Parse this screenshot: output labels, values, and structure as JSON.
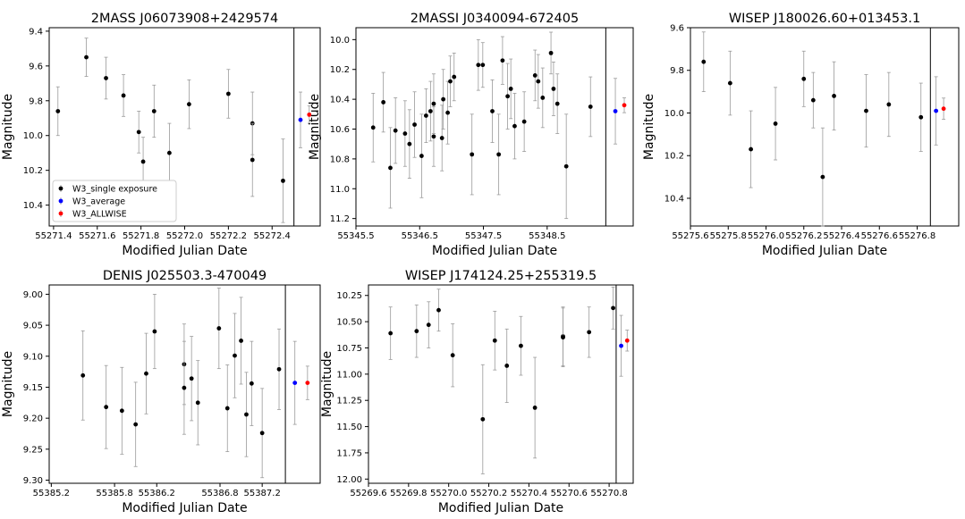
{
  "chart_data": [
    {
      "type": "scatter",
      "title": "2MASS J06073908+2429574",
      "xlabel": "Modified Julian Date",
      "ylabel": "Magnitude",
      "xlim": [
        55271.38,
        55272.62
      ],
      "ylim": [
        10.52,
        9.38
      ],
      "y_inverted": true,
      "xticks": [
        "55271.4",
        "55271.6",
        "55271.8",
        "55272.0",
        "55272.2",
        "55272.4"
      ],
      "yticks": [
        "9.4",
        "9.6",
        "9.8",
        "10.0",
        "10.2",
        "10.4"
      ],
      "separator_x": 55272.5,
      "legend": {
        "placement": "lower-left",
        "entries": [
          "W3_single exposure",
          "W3_average",
          "W3_ALLWISE"
        ]
      },
      "series": [
        {
          "name": "W3_single exposure",
          "color": "#000000",
          "points": [
            [
              55271.42,
              9.86,
              0.14
            ],
            [
              55271.55,
              9.55,
              0.11
            ],
            [
              55271.64,
              9.67,
              0.12
            ],
            [
              55271.72,
              9.77,
              0.12
            ],
            [
              55271.79,
              9.98,
              0.12
            ],
            [
              55271.81,
              10.15,
              0.14
            ],
            [
              55271.86,
              9.86,
              0.15
            ],
            [
              55271.93,
              10.1,
              0.17
            ],
            [
              55272.02,
              9.82,
              0.14
            ],
            [
              55272.2,
              9.76,
              0.14
            ],
            [
              55272.31,
              9.93,
              0.18
            ],
            [
              55272.31,
              10.14,
              0.21
            ],
            [
              55272.45,
              10.26,
              0.24
            ]
          ]
        },
        {
          "name": "W3_average",
          "color": "#0000ff",
          "points": [
            [
              55272.53,
              9.91,
              0.16
            ]
          ]
        },
        {
          "name": "W3_ALLWISE",
          "color": "#ff0000",
          "points": [
            [
              55272.57,
              9.88,
              0.05
            ]
          ]
        }
      ]
    },
    {
      "type": "scatter",
      "title": "2MASSI J0340094-672405",
      "xlabel": "Modified Julian Date",
      "ylabel": "Magnitude",
      "xlim": [
        55345.5,
        55349.85
      ],
      "ylim": [
        11.25,
        9.92
      ],
      "y_inverted": true,
      "xticks": [
        "55345.5",
        "55346.5",
        "55347.5",
        "55348.5"
      ],
      "yticks": [
        "10.0",
        "10.2",
        "10.4",
        "10.6",
        "10.8",
        "11.0",
        "11.2"
      ],
      "separator_x": 55349.42,
      "series": [
        {
          "name": "W3_single exposure",
          "color": "#000000",
          "points": [
            [
              55345.77,
              10.59,
              0.23
            ],
            [
              55345.93,
              10.42,
              0.2
            ],
            [
              55346.04,
              10.86,
              0.27
            ],
            [
              55346.12,
              10.61,
              0.22
            ],
            [
              55346.27,
              10.63,
              0.22
            ],
            [
              55346.34,
              10.7,
              0.23
            ],
            [
              55346.42,
              10.57,
              0.22
            ],
            [
              55346.53,
              10.78,
              0.28
            ],
            [
              55346.6,
              10.51,
              0.18
            ],
            [
              55346.67,
              10.48,
              0.2
            ],
            [
              55346.72,
              10.43,
              0.2
            ],
            [
              55346.72,
              10.65,
              0.2
            ],
            [
              55346.85,
              10.66,
              0.22
            ],
            [
              55346.87,
              10.4,
              0.2
            ],
            [
              55346.94,
              10.49,
              0.21
            ],
            [
              55346.98,
              10.28,
              0.17
            ],
            [
              55347.04,
              10.25,
              0.16
            ],
            [
              55347.32,
              10.77,
              0.27
            ],
            [
              55347.42,
              10.17,
              0.17
            ],
            [
              55347.49,
              10.17,
              0.15
            ],
            [
              55347.64,
              10.48,
              0.21
            ],
            [
              55347.74,
              10.77,
              0.27
            ],
            [
              55347.8,
              10.14,
              0.16
            ],
            [
              55347.88,
              10.38,
              0.22
            ],
            [
              55347.93,
              10.33,
              0.2
            ],
            [
              55347.99,
              10.58,
              0.22
            ],
            [
              55348.14,
              10.55,
              0.2
            ],
            [
              55348.31,
              10.24,
              0.17
            ],
            [
              55348.36,
              10.28,
              0.18
            ],
            [
              55348.43,
              10.39,
              0.2
            ],
            [
              55348.56,
              10.09,
              0.14
            ],
            [
              55348.6,
              10.33,
              0.18
            ],
            [
              55348.66,
              10.43,
              0.2
            ],
            [
              55348.8,
              10.85,
              0.35
            ],
            [
              55349.18,
              10.45,
              0.2
            ]
          ]
        },
        {
          "name": "W3_average",
          "color": "#0000ff",
          "points": [
            [
              55349.57,
              10.48,
              0.22
            ]
          ]
        },
        {
          "name": "W3_ALLWISE",
          "color": "#ff0000",
          "points": [
            [
              55349.71,
              10.44,
              0.05
            ]
          ]
        }
      ]
    },
    {
      "type": "scatter",
      "title": "WISEP J180026.60+013453.1",
      "xlabel": "Modified Julian Date",
      "ylabel": "Magnitude",
      "xlim": [
        55275.6,
        55277.02
      ],
      "ylim": [
        10.53,
        9.6
      ],
      "y_inverted": true,
      "xticks": [
        "55275.6",
        "55275.8",
        "55276.0",
        "55276.2",
        "55276.4",
        "55276.6",
        "55276.8"
      ],
      "yticks": [
        "9.6",
        "9.8",
        "10.0",
        "10.2",
        "10.4"
      ],
      "separator_x": 55276.87,
      "series": [
        {
          "name": "W3_single exposure",
          "color": "#000000",
          "points": [
            [
              55275.67,
              9.76,
              0.14
            ],
            [
              55275.81,
              9.86,
              0.15
            ],
            [
              55275.92,
              10.17,
              0.18
            ],
            [
              55276.05,
              10.05,
              0.17
            ],
            [
              55276.2,
              9.84,
              0.13
            ],
            [
              55276.25,
              9.94,
              0.13
            ],
            [
              55276.3,
              10.3,
              0.23
            ],
            [
              55276.36,
              9.92,
              0.16
            ],
            [
              55276.53,
              9.99,
              0.17
            ],
            [
              55276.65,
              9.96,
              0.15
            ],
            [
              55276.82,
              10.02,
              0.16
            ]
          ]
        },
        {
          "name": "W3_average",
          "color": "#0000ff",
          "points": [
            [
              55276.9,
              9.99,
              0.16
            ]
          ]
        },
        {
          "name": "W3_ALLWISE",
          "color": "#ff0000",
          "points": [
            [
              55276.94,
              9.98,
              0.05
            ]
          ]
        }
      ]
    },
    {
      "type": "scatter",
      "title": "DENIS J025503.3-470049",
      "xlabel": "Modified Julian Date",
      "ylabel": "Magnitude",
      "xlim": [
        55385.18,
        55387.75
      ],
      "ylim": [
        9.305,
        8.985
      ],
      "y_inverted": true,
      "xticks": [
        "55385.2",
        "55385.8",
        "55386.2",
        "55386.8",
        "55387.2"
      ],
      "yticks": [
        "9.00",
        "9.05",
        "9.10",
        "9.15",
        "9.20",
        "9.25",
        "9.30"
      ],
      "separator_x": 55387.42,
      "series": [
        {
          "name": "W3_single exposure",
          "color": "#000000",
          "points": [
            [
              55385.5,
              9.131,
              0.072
            ],
            [
              55385.72,
              9.182,
              0.067
            ],
            [
              55385.87,
              9.188,
              0.07
            ],
            [
              55386.0,
              9.21,
              0.068
            ],
            [
              55386.1,
              9.128,
              0.065
            ],
            [
              55386.18,
              9.06,
              0.06
            ],
            [
              55386.46,
              9.113,
              0.065
            ],
            [
              55386.46,
              9.151,
              0.075
            ],
            [
              55386.53,
              9.136,
              0.068
            ],
            [
              55386.59,
              9.175,
              0.068
            ],
            [
              55386.79,
              9.055,
              0.065
            ],
            [
              55386.87,
              9.184,
              0.07
            ],
            [
              55386.94,
              9.099,
              0.068
            ],
            [
              55387.0,
              9.075,
              0.07
            ],
            [
              55387.05,
              9.194,
              0.068
            ],
            [
              55387.1,
              9.144,
              0.068
            ],
            [
              55387.2,
              9.224,
              0.072
            ],
            [
              55387.36,
              9.121,
              0.065
            ]
          ]
        },
        {
          "name": "W3_average",
          "color": "#0000ff",
          "points": [
            [
              55387.51,
              9.143,
              0.067
            ]
          ]
        },
        {
          "name": "W3_ALLWISE",
          "color": "#ff0000",
          "points": [
            [
              55387.63,
              9.143,
              0.027
            ]
          ]
        }
      ]
    },
    {
      "type": "scatter",
      "title": "WISEP J174124.25+255319.5",
      "xlabel": "Modified Julian Date",
      "ylabel": "Magnitude",
      "xlim": [
        55269.6,
        55270.92
      ],
      "ylim": [
        12.04,
        10.15
      ],
      "y_inverted": true,
      "xticks": [
        "55269.6",
        "55269.8",
        "55270.0",
        "55270.2",
        "55270.4",
        "55270.6",
        "55270.8"
      ],
      "yticks": [
        "10.25",
        "10.50",
        "10.75",
        "11.00",
        "11.25",
        "11.50",
        "11.75",
        "12.00"
      ],
      "separator_x": 55270.835,
      "series": [
        {
          "name": "W3_single exposure",
          "color": "#000000",
          "points": [
            [
              55269.71,
              10.61,
              0.25
            ],
            [
              55269.84,
              10.59,
              0.25
            ],
            [
              55269.9,
              10.53,
              0.22
            ],
            [
              55269.95,
              10.39,
              0.2
            ],
            [
              55270.02,
              10.82,
              0.3
            ],
            [
              55270.17,
              11.43,
              0.52
            ],
            [
              55270.23,
              10.68,
              0.28
            ],
            [
              55270.29,
              10.92,
              0.35
            ],
            [
              55270.36,
              10.73,
              0.28
            ],
            [
              55270.43,
              11.32,
              0.48
            ],
            [
              55270.57,
              10.64,
              0.28
            ],
            [
              55270.57,
              10.65,
              0.28
            ],
            [
              55270.7,
              10.6,
              0.24
            ],
            [
              55270.82,
              10.37,
              0.2
            ]
          ]
        },
        {
          "name": "W3_average",
          "color": "#0000ff",
          "points": [
            [
              55270.86,
              10.73,
              0.29
            ]
          ]
        },
        {
          "name": "W3_ALLWISE",
          "color": "#ff0000",
          "points": [
            [
              55270.89,
              10.68,
              0.1
            ]
          ]
        }
      ]
    }
  ]
}
